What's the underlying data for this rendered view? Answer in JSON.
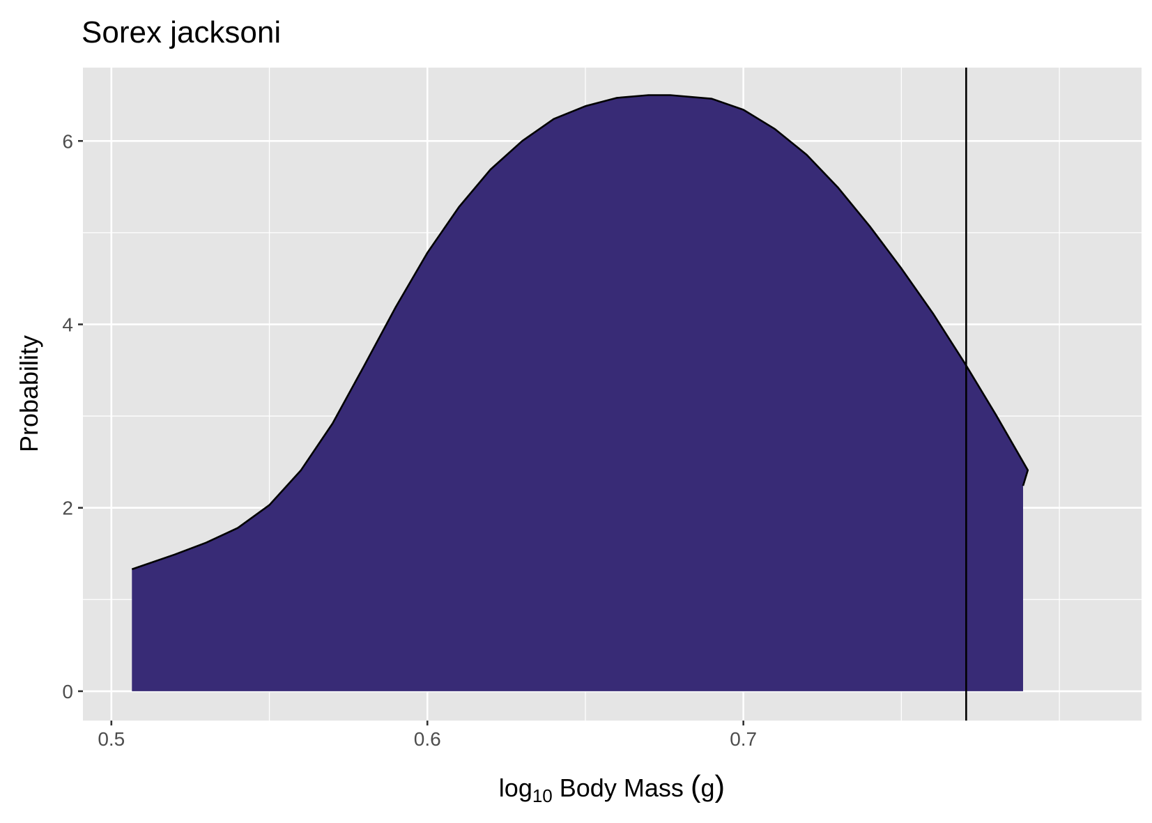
{
  "chart_data": {
    "type": "area",
    "title": "Sorex jacksoni",
    "xlabel": {
      "prefix": "log",
      "subscript": "10",
      "suffix": " Body Mass ",
      "open_paren": "(",
      "unit": "g",
      "close_paren": ")"
    },
    "ylabel": "Probability",
    "xlim": [
      0.491,
      0.826
    ],
    "ylim": [
      -0.32,
      6.8
    ],
    "x_ticks": [
      0.5,
      0.6,
      0.7
    ],
    "x_tick_labels": [
      "0.5",
      "0.6",
      "0.7"
    ],
    "x_minor_ticks": [
      0.55,
      0.65,
      0.75,
      0.8
    ],
    "y_ticks": [
      0,
      2,
      4,
      6
    ],
    "y_tick_labels": [
      "0",
      "2",
      "4",
      "6"
    ],
    "y_minor_ticks": [
      1,
      3,
      5
    ],
    "vline_x": 0.7705,
    "series": [
      {
        "name": "density",
        "fill": "#382b76",
        "stroke": "#000000",
        "x": [
          0.5065,
          0.52,
          0.53,
          0.54,
          0.55,
          0.56,
          0.57,
          0.58,
          0.59,
          0.6,
          0.61,
          0.62,
          0.63,
          0.64,
          0.65,
          0.66,
          0.67,
          0.6768,
          0.69,
          0.7,
          0.71,
          0.72,
          0.73,
          0.74,
          0.75,
          0.76,
          0.77,
          0.78,
          0.79,
          0.7885
        ],
        "y": [
          1.33,
          1.49,
          1.62,
          1.78,
          2.03,
          2.41,
          2.92,
          3.55,
          4.19,
          4.78,
          5.28,
          5.69,
          6.0,
          6.24,
          6.38,
          6.47,
          6.5,
          6.5,
          6.46,
          6.34,
          6.13,
          5.85,
          5.49,
          5.07,
          4.61,
          4.12,
          3.58,
          3.01,
          2.41,
          2.24
        ]
      }
    ],
    "colors": {
      "panel": "#e5e5e5",
      "grid": "#ffffff",
      "fill": "#382b76",
      "line": "#000000"
    }
  }
}
